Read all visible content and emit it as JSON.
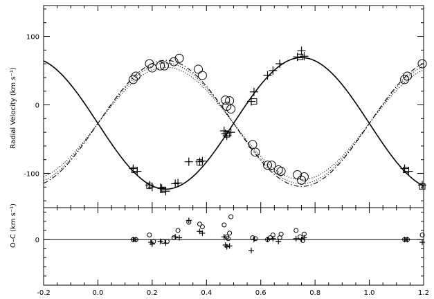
{
  "chart_data": {
    "type": "scatter",
    "xlim": [
      -0.2,
      1.2
    ],
    "x_ticks": [
      -0.2,
      0.0,
      0.2,
      0.4,
      0.6,
      0.8,
      1.0,
      1.2
    ],
    "x_tick_labels": [
      "-0.2",
      "0.0",
      "0.2",
      "0.4",
      "0.6",
      "0.8",
      "1.0",
      "1.2"
    ],
    "panels": [
      {
        "name": "rv",
        "ylabel": "Radial Velocity (km s⁻¹)",
        "ylim": [
          -150,
          145
        ],
        "y_ticks": [
          100,
          0,
          -100
        ],
        "y_tick_labels": [
          "100",
          "0",
          "-100"
        ],
        "reference_lines": [],
        "series": [
          {
            "marker": "plus",
            "points": [
              [
                0.13,
                -93
              ],
              [
                0.145,
                -97
              ],
              [
                0.19,
                -117
              ],
              [
                0.2,
                -120
              ],
              [
                0.23,
                -121
              ],
              [
                0.235,
                -122
              ],
              [
                0.25,
                -126
              ],
              [
                0.285,
                -115
              ],
              [
                0.295,
                -114
              ],
              [
                0.335,
                -83
              ],
              [
                0.375,
                -83
              ],
              [
                0.385,
                -82
              ],
              [
                0.465,
                -38
              ],
              [
                0.47,
                -42
              ],
              [
                0.475,
                -45
              ],
              [
                0.49,
                -40
              ],
              [
                0.565,
                5
              ],
              [
                0.575,
                19
              ],
              [
                0.625,
                43
              ],
              [
                0.645,
                50
              ],
              [
                0.67,
                60
              ],
              [
                0.735,
                70
              ],
              [
                0.75,
                79
              ],
              [
                0.76,
                71
              ],
              [
                1.13,
                -93
              ],
              [
                1.145,
                -97
              ],
              [
                1.195,
                -117
              ]
            ]
          },
          {
            "marker": "square",
            "points": [
              [
                0.135,
                -95
              ],
              [
                0.19,
                -118
              ],
              [
                0.24,
                -124
              ],
              [
                0.375,
                -84
              ],
              [
                0.475,
                -43
              ],
              [
                0.575,
                5
              ],
              [
                0.745,
                70
              ],
              [
                1.135,
                -95
              ],
              [
                1.195,
                -119
              ]
            ]
          },
          {
            "marker": "circle",
            "points": [
              [
                0.13,
                37
              ],
              [
                0.14,
                42
              ],
              [
                0.19,
                60
              ],
              [
                0.2,
                54
              ],
              [
                0.23,
                57
              ],
              [
                0.245,
                57
              ],
              [
                0.28,
                63
              ],
              [
                0.3,
                68
              ],
              [
                0.37,
                52
              ],
              [
                0.385,
                43
              ],
              [
                0.47,
                7
              ],
              [
                0.475,
                -2
              ],
              [
                0.485,
                6
              ],
              [
                0.49,
                -6
              ],
              [
                0.57,
                -58
              ],
              [
                0.58,
                -69
              ],
              [
                0.625,
                -88
              ],
              [
                0.64,
                -88
              ],
              [
                0.665,
                -95
              ],
              [
                0.675,
                -97
              ],
              [
                0.735,
                -102
              ],
              [
                0.75,
                -110
              ],
              [
                0.76,
                -105
              ],
              [
                1.13,
                37
              ],
              [
                1.14,
                42
              ],
              [
                1.195,
                60
              ]
            ]
          }
        ],
        "curves": [
          {
            "style": "solid",
            "gamma": -27,
            "K": 96,
            "phase_of_minimum": 0.25
          },
          {
            "style": "dashdot",
            "gamma": -27,
            "K": 92,
            "phase_of_maximum": 0.25
          },
          {
            "style": "dotted",
            "gamma": -27,
            "K": 88,
            "phase_of_maximum": 0.25
          },
          {
            "style": "dotted",
            "gamma": -27,
            "K": 82,
            "phase_of_maximum": 0.25
          }
        ]
      },
      {
        "name": "residuals",
        "ylabel": "O–C (km s⁻¹)",
        "ylim": [
          -50,
          35
        ],
        "y_ticks": [
          0
        ],
        "y_tick_labels": [
          "0"
        ],
        "reference_lines": [
          0
        ],
        "series": [
          {
            "marker": "plus",
            "points": [
              [
                0.13,
                0
              ],
              [
                0.14,
                0
              ],
              [
                0.195,
                -3
              ],
              [
                0.2,
                -5
              ],
              [
                0.23,
                -2
              ],
              [
                0.25,
                -4
              ],
              [
                0.285,
                3
              ],
              [
                0.3,
                2
              ],
              [
                0.335,
                21
              ],
              [
                0.375,
                9
              ],
              [
                0.385,
                7
              ],
              [
                0.465,
                3
              ],
              [
                0.47,
                -6
              ],
              [
                0.475,
                -8
              ],
              [
                0.485,
                -7
              ],
              [
                0.565,
                -12
              ],
              [
                0.575,
                0
              ],
              [
                0.625,
                0
              ],
              [
                0.645,
                1
              ],
              [
                0.665,
                -2
              ],
              [
                0.73,
                1
              ],
              [
                0.75,
                0
              ],
              [
                0.76,
                2
              ],
              [
                1.13,
                0
              ],
              [
                1.14,
                0
              ],
              [
                1.195,
                -3
              ]
            ]
          },
          {
            "marker": "circle",
            "points": [
              [
                0.13,
                0
              ],
              [
                0.14,
                0
              ],
              [
                0.19,
                5
              ],
              [
                0.205,
                -2
              ],
              [
                0.24,
                -2
              ],
              [
                0.255,
                -2
              ],
              [
                0.28,
                2
              ],
              [
                0.295,
                10
              ],
              [
                0.335,
                19
              ],
              [
                0.375,
                17
              ],
              [
                0.385,
                14
              ],
              [
                0.465,
                16
              ],
              [
                0.475,
                3
              ],
              [
                0.48,
                1
              ],
              [
                0.485,
                7
              ],
              [
                0.49,
                25
              ],
              [
                0.57,
                2
              ],
              [
                0.58,
                1
              ],
              [
                0.625,
                0
              ],
              [
                0.635,
                2
              ],
              [
                0.645,
                5
              ],
              [
                0.67,
                2
              ],
              [
                0.675,
                6
              ],
              [
                0.73,
                10
              ],
              [
                0.745,
                3
              ],
              [
                0.755,
                -1
              ],
              [
                0.76,
                6
              ],
              [
                1.13,
                0
              ],
              [
                1.14,
                0
              ],
              [
                1.195,
                5
              ]
            ]
          }
        ],
        "curves": []
      }
    ]
  }
}
